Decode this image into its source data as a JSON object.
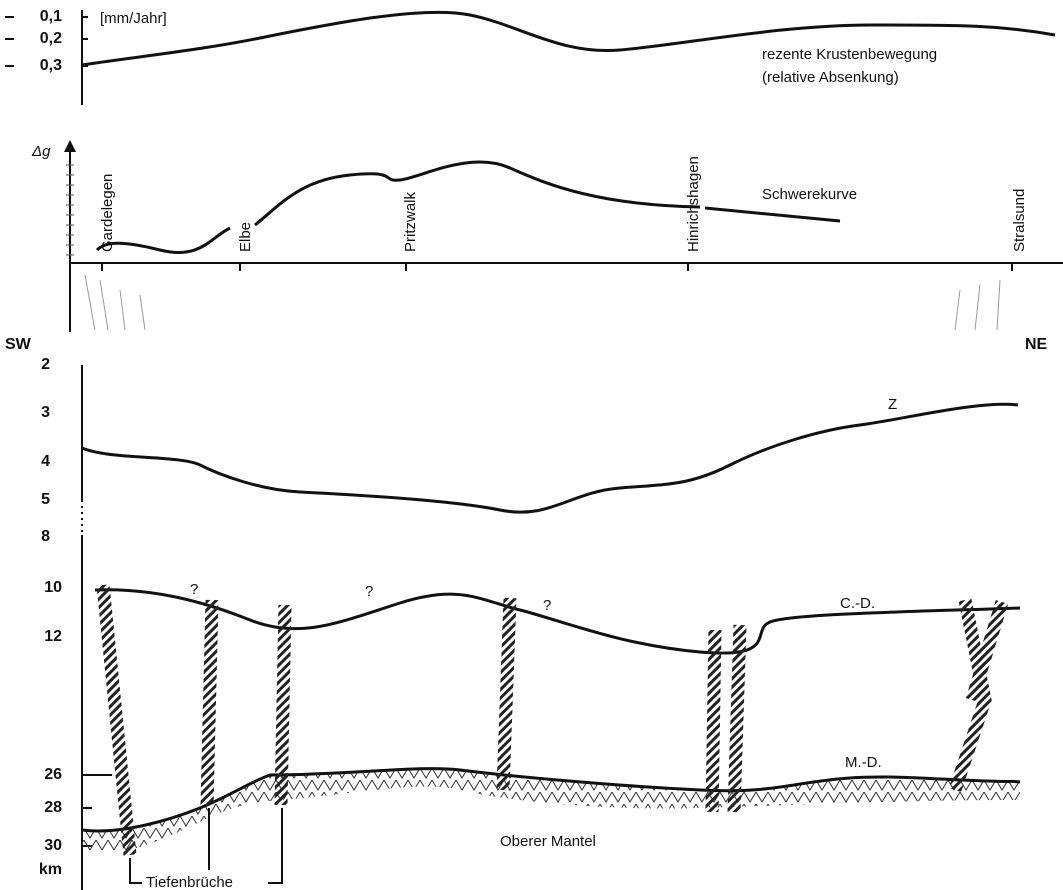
{
  "top_panel": {
    "ticks": [
      "0,1",
      "0,2",
      "0,3"
    ],
    "unit": "[mm/Jahr]",
    "label": [
      "rezente Krustenbewegung",
      "(relative Absenkung)"
    ]
  },
  "gravity_panel": {
    "axis_label": "Δg",
    "curve_label": "Schwerekurve",
    "places": [
      "Gardelegen",
      "Elbe",
      "Pritzwalk",
      "Hinrichshagen",
      "Stralsund"
    ]
  },
  "section": {
    "left": "SW",
    "right": "NE",
    "depth_ticks": [
      "2",
      "3",
      "4",
      "5",
      "8",
      "10",
      "12",
      "26",
      "28",
      "30",
      "km"
    ],
    "labels": {
      "z": "Z",
      "cd": "C.-D.",
      "md": "M.-D.",
      "mantle": "Oberer Mantel",
      "faults": "Tiefenbrüche"
    },
    "question_marks": [
      "?",
      "?",
      "?"
    ]
  }
}
